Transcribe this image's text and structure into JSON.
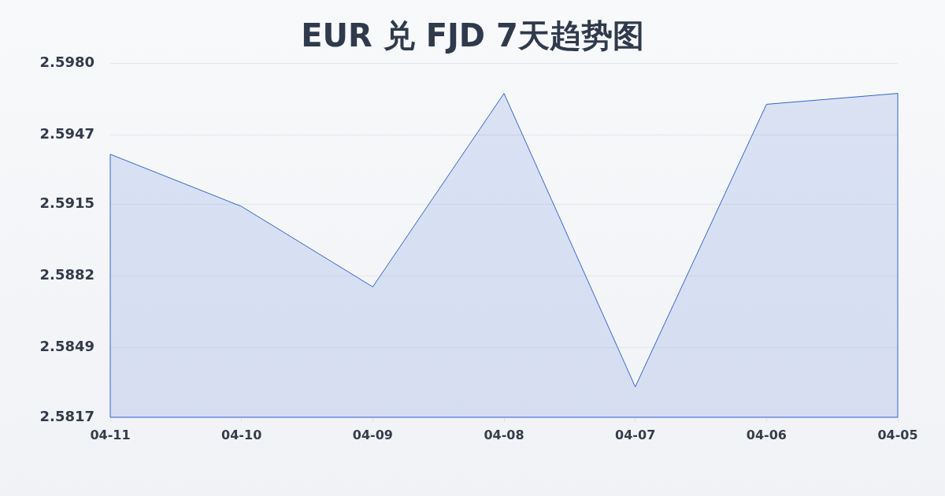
{
  "chart_data": {
    "type": "area",
    "title": "EUR 兑 FJD 7天趋势图",
    "categories": [
      "04-11",
      "04-10",
      "04-09",
      "04-08",
      "04-07",
      "04-06",
      "04-05"
    ],
    "values": [
      2.5938,
      2.5914,
      2.5877,
      2.5966,
      2.5831,
      2.5961,
      2.5966
    ],
    "color": "#3563d0",
    "ylim": [
      2.5817,
      2.598
    ],
    "yticks": [
      2.5817,
      2.5849,
      2.5882,
      2.5915,
      2.5947,
      {
        "value": 2.598,
        "label": "2.5980"
      }
    ],
    "grid": "y"
  }
}
